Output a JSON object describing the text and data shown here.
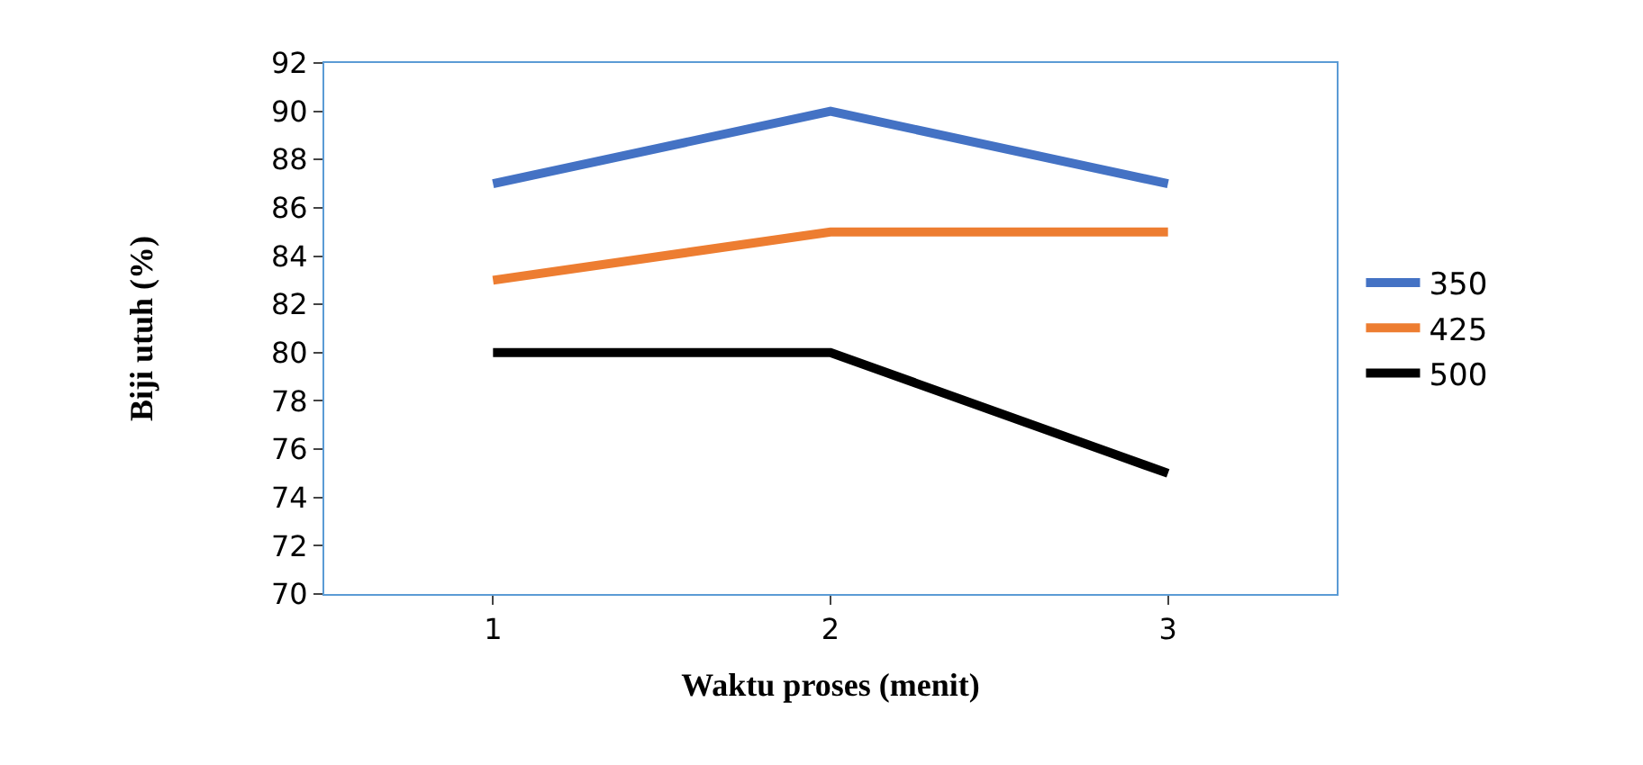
{
  "chart_data": {
    "type": "line",
    "xlabel": "Waktu proses (menit)",
    "ylabel": "Biji utuh (%)",
    "categories": [
      "1",
      "2",
      "3"
    ],
    "series": [
      {
        "name": "350",
        "color": "#4472c4",
        "values": [
          87,
          90,
          87
        ]
      },
      {
        "name": "425",
        "color": "#ed7d31",
        "values": [
          83,
          85,
          85
        ]
      },
      {
        "name": "500",
        "color": "#000000",
        "values": [
          80,
          80,
          75
        ]
      }
    ],
    "ylim": [
      70,
      92
    ],
    "yticks": [
      70,
      72,
      74,
      76,
      78,
      80,
      82,
      84,
      86,
      88,
      90,
      92
    ],
    "grid": false,
    "legend": "right",
    "marker": "none",
    "line_style": "solid"
  }
}
